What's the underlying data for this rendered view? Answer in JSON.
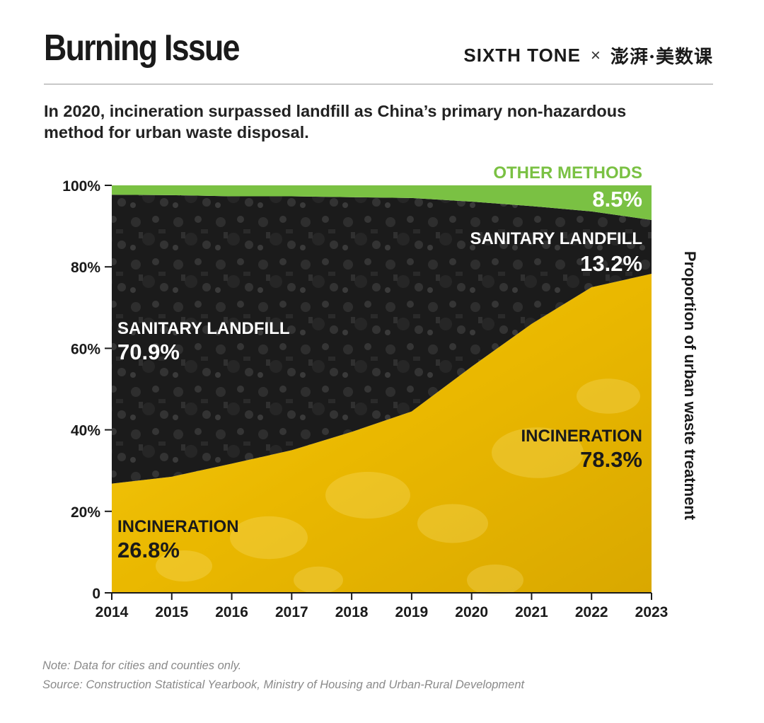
{
  "header": {
    "title": "Burning Issue",
    "brand_left": "SIXTH TONE",
    "brand_sep": "×",
    "brand_right": "澎湃·美数课",
    "subtitle_line1": "In 2020, incineration surpassed landfill as China’s primary non-hazardous",
    "subtitle_line2": "method for urban waste disposal."
  },
  "chart_data": {
    "type": "area",
    "stacked": true,
    "x": [
      2014,
      2015,
      2016,
      2017,
      2018,
      2019,
      2020,
      2021,
      2022,
      2023
    ],
    "series": [
      {
        "name": "INCINERATION",
        "values": [
          26.8,
          28.5,
          31.7,
          35.0,
          39.5,
          44.5,
          55.5,
          66.0,
          75.0,
          78.3
        ],
        "color": "#f2c200"
      },
      {
        "name": "SANITARY LANDFILL",
        "values": [
          70.9,
          69.1,
          65.6,
          62.3,
          57.6,
          52.4,
          40.5,
          28.9,
          18.6,
          13.2
        ],
        "color": "#1c1c1c"
      },
      {
        "name": "OTHER METHODS",
        "values": [
          2.3,
          2.4,
          2.7,
          2.7,
          2.9,
          3.1,
          4.0,
          5.1,
          6.4,
          8.5
        ],
        "color": "#7ac143"
      }
    ],
    "ylim": [
      0,
      100
    ],
    "y_ticks": [
      "0",
      "20%",
      "40%",
      "60%",
      "80%",
      "100%"
    ],
    "y_tick_values": [
      0,
      20,
      40,
      60,
      80,
      100
    ],
    "ylabel": "Proportion of urban waste treatment",
    "annotations": [
      {
        "label": "SANITARY LANDFILL",
        "value": "70.9%"
      },
      {
        "label": "INCINERATION",
        "value": "26.8%"
      },
      {
        "label": "OTHER METHODS",
        "value": "8.5%"
      },
      {
        "label": "SANITARY LANDFILL",
        "value": "13.2%"
      },
      {
        "label": "INCINERATION",
        "value": "78.3%"
      }
    ]
  },
  "footer": {
    "note": "Note: Data for cities and counties only.",
    "source": "Source: Construction Statistical Yearbook, Ministry of Housing and Urban-Rural Development"
  }
}
